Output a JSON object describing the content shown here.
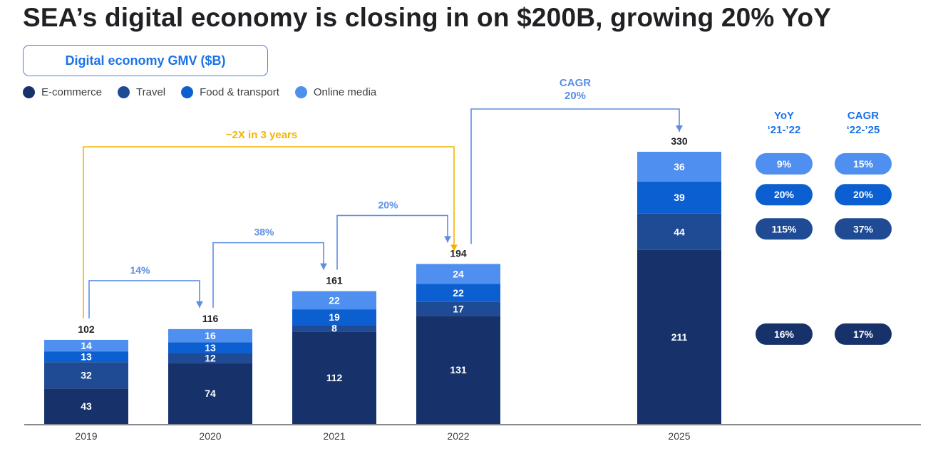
{
  "title": "SEA’s digital economy is closing in on $200B, growing 20% YoY",
  "colors": {
    "ecommerce": "#17326b",
    "travel": "#1f4a94",
    "food": "#0b5fd1",
    "media": "#4f8ff0",
    "arrow_blue": "#5c8ee6",
    "arrow_gold": "#f4b400",
    "label_blue": "#1a73e8",
    "axis": "#5f6368"
  },
  "chart_data": {
    "type": "bar",
    "stacked": true,
    "title": "Digital economy GMV ($B)",
    "categories": [
      "2019",
      "2020",
      "2021",
      "2022",
      "2025"
    ],
    "series": [
      {
        "name": "E-commerce",
        "key": "ecommerce",
        "values": [
          43,
          74,
          112,
          131,
          211
        ]
      },
      {
        "name": "Travel",
        "key": "travel",
        "values": [
          32,
          12,
          8,
          17,
          44
        ]
      },
      {
        "name": "Food & transport",
        "key": "food",
        "values": [
          13,
          13,
          19,
          22,
          39
        ]
      },
      {
        "name": "Online media",
        "key": "media",
        "values": [
          14,
          16,
          22,
          24,
          36
        ]
      }
    ],
    "totals": [
      102,
      116,
      161,
      194,
      330
    ],
    "legend_position": "top-left",
    "growth_annotations": [
      {
        "from": "2019",
        "to": "2020",
        "label": "14%",
        "color_key": "arrow_blue"
      },
      {
        "from": "2020",
        "to": "2021",
        "label": "38%",
        "color_key": "arrow_blue"
      },
      {
        "from": "2021",
        "to": "2022",
        "label": "20%",
        "color_key": "arrow_blue"
      },
      {
        "from": "2019",
        "to": "2022",
        "label": "~2X in 3 years",
        "color_key": "arrow_gold"
      },
      {
        "from": "2022",
        "to": "2025",
        "label": "CAGR\n20%",
        "color_key": "arrow_blue"
      }
    ],
    "side_table": {
      "headers": [
        {
          "line1": "YoY",
          "line2": "‘21-’22"
        },
        {
          "line1": "CAGR",
          "line2": "‘22-’25"
        }
      ],
      "rows": [
        {
          "series": "Online media",
          "yoy": "9%",
          "cagr": "15%"
        },
        {
          "series": "Food & transport",
          "yoy": "20%",
          "cagr": "20%"
        },
        {
          "series": "Travel",
          "yoy": "115%",
          "cagr": "37%"
        },
        {
          "series": "E-commerce",
          "yoy": "16%",
          "cagr": "17%"
        }
      ]
    }
  }
}
